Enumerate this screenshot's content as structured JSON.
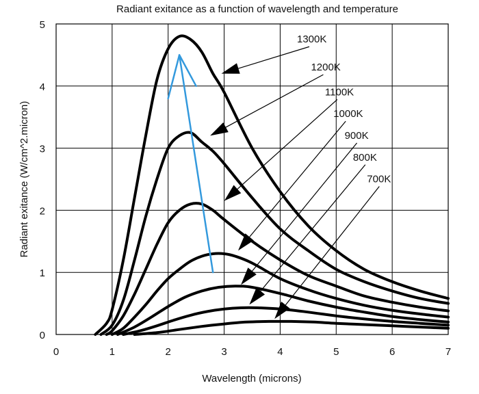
{
  "chart_data": {
    "type": "line",
    "title": "Radiant exitance as a function of wavelength and temperature",
    "xlabel": "Wavelength (microns)",
    "ylabel": "Radiant exitance (W/cm^2.micron)",
    "xlim": [
      0,
      7
    ],
    "ylim": [
      0,
      5
    ],
    "xticks": [
      "0",
      "1",
      "2",
      "3",
      "4",
      "5",
      "6",
      "7"
    ],
    "yticks": [
      "0",
      "1",
      "2",
      "3",
      "4",
      "5"
    ],
    "grid": true,
    "colors": {
      "curves": "#000000",
      "trend": "#3399dd"
    },
    "series": [
      {
        "name": "1300K",
        "x": [
          0.7,
          0.9,
          1.0,
          1.2,
          1.4,
          1.6,
          1.8,
          2.0,
          2.2,
          2.4,
          2.6,
          2.8,
          3.0,
          3.5,
          4.0,
          4.5,
          5.0,
          5.5,
          6.0,
          6.5,
          7.0
        ],
        "y": [
          0.0,
          0.18,
          0.4,
          1.2,
          2.2,
          3.2,
          4.1,
          4.6,
          4.8,
          4.75,
          4.55,
          4.2,
          3.9,
          3.0,
          2.3,
          1.75,
          1.35,
          1.05,
          0.85,
          0.7,
          0.58
        ]
      },
      {
        "name": "1200K",
        "x": [
          0.8,
          1.0,
          1.2,
          1.4,
          1.6,
          1.8,
          2.0,
          2.2,
          2.4,
          2.6,
          2.8,
          3.0,
          3.5,
          4.0,
          4.5,
          5.0,
          5.5,
          6.0,
          6.5,
          7.0
        ],
        "y": [
          0.0,
          0.15,
          0.55,
          1.2,
          1.9,
          2.5,
          3.0,
          3.2,
          3.25,
          3.1,
          2.95,
          2.75,
          2.2,
          1.7,
          1.35,
          1.05,
          0.85,
          0.7,
          0.58,
          0.5
        ]
      },
      {
        "name": "1100K",
        "x": [
          0.9,
          1.0,
          1.2,
          1.4,
          1.6,
          1.8,
          2.0,
          2.2,
          2.4,
          2.6,
          2.8,
          3.0,
          3.5,
          4.0,
          4.5,
          5.0,
          5.5,
          6.0,
          6.5,
          7.0
        ],
        "y": [
          0.0,
          0.06,
          0.3,
          0.65,
          1.05,
          1.45,
          1.8,
          2.0,
          2.1,
          2.1,
          2.0,
          1.85,
          1.5,
          1.2,
          0.95,
          0.78,
          0.62,
          0.52,
          0.44,
          0.38
        ]
      },
      {
        "name": "1000K",
        "x": [
          1.0,
          1.2,
          1.4,
          1.6,
          1.8,
          2.0,
          2.2,
          2.4,
          2.6,
          2.8,
          3.0,
          3.2,
          3.5,
          4.0,
          4.5,
          5.0,
          5.5,
          6.0,
          6.5,
          7.0
        ],
        "y": [
          0.0,
          0.1,
          0.28,
          0.48,
          0.7,
          0.9,
          1.05,
          1.18,
          1.26,
          1.3,
          1.3,
          1.26,
          1.15,
          0.9,
          0.72,
          0.58,
          0.47,
          0.39,
          0.33,
          0.28
        ]
      },
      {
        "name": "900K",
        "x": [
          1.1,
          1.4,
          1.7,
          2.0,
          2.3,
          2.6,
          2.9,
          3.2,
          3.5,
          4.0,
          4.5,
          5.0,
          5.5,
          6.0,
          6.5,
          7.0
        ],
        "y": [
          0.0,
          0.12,
          0.28,
          0.45,
          0.6,
          0.7,
          0.76,
          0.78,
          0.76,
          0.66,
          0.54,
          0.44,
          0.36,
          0.29,
          0.24,
          0.2
        ]
      },
      {
        "name": "800K",
        "x": [
          1.2,
          1.5,
          1.8,
          2.1,
          2.4,
          2.7,
          3.0,
          3.3,
          3.6,
          4.0,
          4.5,
          5.0,
          5.5,
          6.0,
          6.5,
          7.0
        ],
        "y": [
          0.0,
          0.06,
          0.14,
          0.23,
          0.31,
          0.37,
          0.41,
          0.43,
          0.43,
          0.41,
          0.36,
          0.3,
          0.25,
          0.21,
          0.18,
          0.15
        ]
      },
      {
        "name": "700K",
        "x": [
          1.4,
          1.8,
          2.2,
          2.6,
          3.0,
          3.4,
          3.8,
          4.2,
          4.6,
          5.0,
          5.5,
          6.0,
          6.5,
          7.0
        ],
        "y": [
          0.0,
          0.03,
          0.08,
          0.13,
          0.17,
          0.2,
          0.21,
          0.21,
          0.2,
          0.18,
          0.16,
          0.14,
          0.12,
          0.1
        ]
      }
    ],
    "annotations": [
      {
        "label": "1300K",
        "text_at": [
          4.3,
          4.7
        ],
        "arrow_to": [
          2.95,
          4.2
        ]
      },
      {
        "label": "1200K",
        "text_at": [
          4.55,
          4.25
        ],
        "arrow_to": [
          2.75,
          3.2
        ]
      },
      {
        "label": "1100K",
        "text_at": [
          4.8,
          3.85
        ],
        "arrow_to": [
          3.0,
          2.15
        ]
      },
      {
        "label": "1000K",
        "text_at": [
          4.95,
          3.5
        ],
        "arrow_to": [
          3.25,
          1.35
        ]
      },
      {
        "label": "900K",
        "text_at": [
          5.15,
          3.15
        ],
        "arrow_to": [
          3.3,
          0.8
        ]
      },
      {
        "label": "800K",
        "text_at": [
          5.3,
          2.8
        ],
        "arrow_to": [
          3.45,
          0.48
        ]
      },
      {
        "label": "700K",
        "text_at": [
          5.55,
          2.45
        ],
        "arrow_to": [
          3.9,
          0.25
        ]
      }
    ],
    "peak_trend": {
      "line": [
        [
          2.8,
          1.0
        ],
        [
          2.2,
          4.5
        ]
      ],
      "arrow_head": [
        [
          2.0,
          3.8
        ],
        [
          2.2,
          4.5
        ],
        [
          2.5,
          4.0
        ]
      ]
    }
  }
}
